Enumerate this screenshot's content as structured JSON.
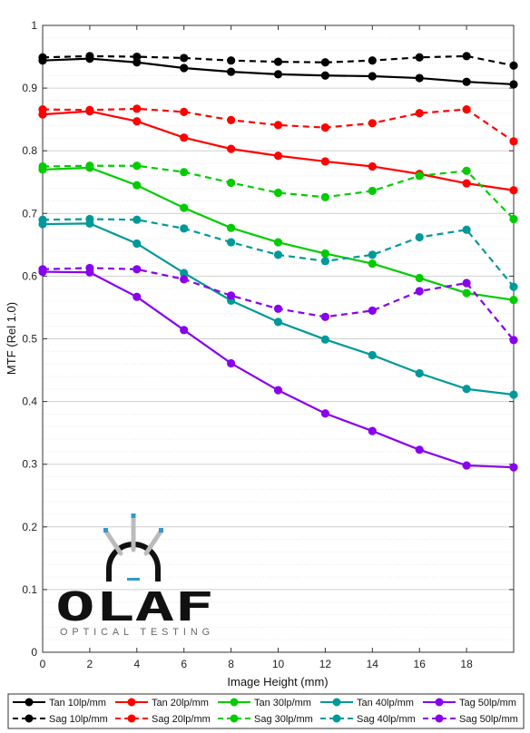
{
  "chart_data": {
    "type": "line",
    "xlabel": "Image Height (mm)",
    "ylabel": "MTF (Rel 1.0)",
    "xlim": [
      0,
      20
    ],
    "ylim": [
      0,
      1
    ],
    "x_ticks": [
      0,
      2,
      4,
      6,
      8,
      10,
      12,
      14,
      16,
      18
    ],
    "y_ticks": [
      0,
      0.1,
      0.2,
      0.3,
      0.4,
      0.5,
      0.6,
      0.7,
      0.8,
      0.9,
      1
    ],
    "y_tick_labels": [
      "0",
      "0.1",
      "0.2",
      "0.3",
      "0.4",
      "0.5",
      "0.6",
      "0.7",
      "0.8",
      "0.9",
      "1"
    ],
    "grid": true,
    "legend_position": "bottom",
    "x": [
      0,
      2,
      4,
      6,
      8,
      10,
      12,
      14,
      16,
      18,
      20
    ],
    "series": [
      {
        "name": "Tan 10lp/mm",
        "color": "#000000",
        "style": "solid",
        "values": [
          0.944,
          0.947,
          0.941,
          0.932,
          0.926,
          0.922,
          0.92,
          0.919,
          0.916,
          0.91,
          0.906
        ]
      },
      {
        "name": "Sag 10lp/mm",
        "color": "#000000",
        "style": "dashed",
        "values": [
          0.949,
          0.951,
          0.95,
          0.948,
          0.944,
          0.942,
          0.941,
          0.944,
          0.949,
          0.951,
          0.936
        ]
      },
      {
        "name": "Tan 20lp/mm",
        "color": "#ff0000",
        "style": "solid",
        "values": [
          0.858,
          0.863,
          0.847,
          0.821,
          0.803,
          0.792,
          0.783,
          0.775,
          0.763,
          0.748,
          0.737
        ]
      },
      {
        "name": "Sag 20lp/mm",
        "color": "#ff0000",
        "style": "dashed",
        "values": [
          0.866,
          0.865,
          0.867,
          0.862,
          0.849,
          0.841,
          0.837,
          0.844,
          0.86,
          0.866,
          0.815
        ]
      },
      {
        "name": "Tan 30lp/mm",
        "color": "#00cc00",
        "style": "solid",
        "values": [
          0.77,
          0.773,
          0.745,
          0.709,
          0.677,
          0.654,
          0.636,
          0.62,
          0.597,
          0.573,
          0.562
        ]
      },
      {
        "name": "Sag 30lp/mm",
        "color": "#00cc00",
        "style": "dashed",
        "values": [
          0.775,
          0.776,
          0.776,
          0.766,
          0.749,
          0.733,
          0.726,
          0.736,
          0.76,
          0.768,
          0.691
        ]
      },
      {
        "name": "Tan 40lp/mm",
        "color": "#009999",
        "style": "solid",
        "values": [
          0.683,
          0.684,
          0.652,
          0.605,
          0.561,
          0.527,
          0.499,
          0.474,
          0.445,
          0.42,
          0.411
        ]
      },
      {
        "name": "Sag 40lp/mm",
        "color": "#009999",
        "style": "dashed",
        "values": [
          0.69,
          0.691,
          0.69,
          0.676,
          0.654,
          0.634,
          0.624,
          0.634,
          0.662,
          0.674,
          0.583
        ]
      },
      {
        "name": "Tag 50lp/mm",
        "color": "#8800ee",
        "style": "solid",
        "values": [
          0.607,
          0.606,
          0.567,
          0.514,
          0.461,
          0.418,
          0.381,
          0.353,
          0.323,
          0.298,
          0.295
        ]
      },
      {
        "name": "Sag 50lp/mm",
        "color": "#8800ee",
        "style": "dashed",
        "values": [
          0.611,
          0.613,
          0.611,
          0.595,
          0.569,
          0.548,
          0.535,
          0.545,
          0.576,
          0.589,
          0.498
        ]
      }
    ]
  },
  "logo": {
    "word": "OLAF",
    "tagline": "OPTICAL TESTING",
    "colors": {
      "primary": "#111111",
      "accent": "#3399cc",
      "ray": "#bbbbbb"
    }
  }
}
